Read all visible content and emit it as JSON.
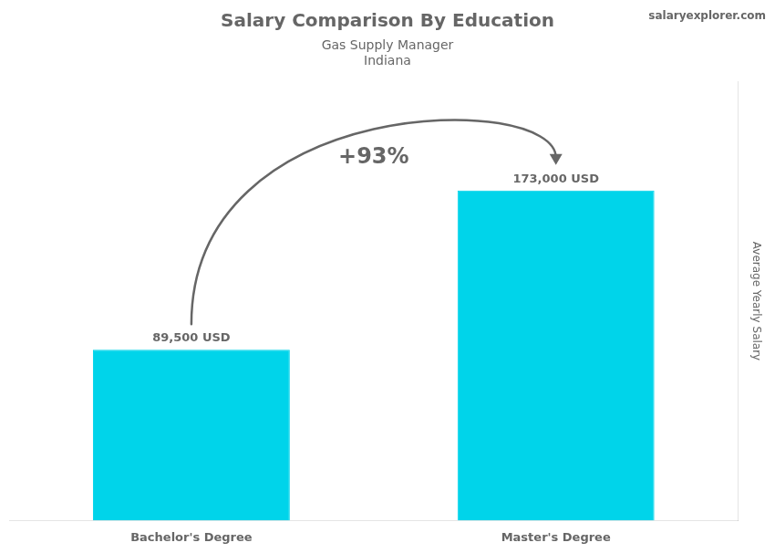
{
  "chart_data": {
    "type": "bar",
    "title": "Salary Comparison By Education",
    "subtitle": "Gas Supply Manager",
    "location": "Indiana",
    "source": "salaryexplorer.com",
    "categories": [
      "Bachelor's Degree",
      "Master's Degree"
    ],
    "values": [
      89500,
      173000
    ],
    "value_labels": [
      "89,500 USD",
      "173,000 USD"
    ],
    "data_labels": true,
    "annotation": "+93%",
    "ylabel": "Average Yearly Salary",
    "color": "#00d4ea",
    "ylim": [
      0,
      230000
    ],
    "grid": false,
    "tick_labels": "x"
  }
}
